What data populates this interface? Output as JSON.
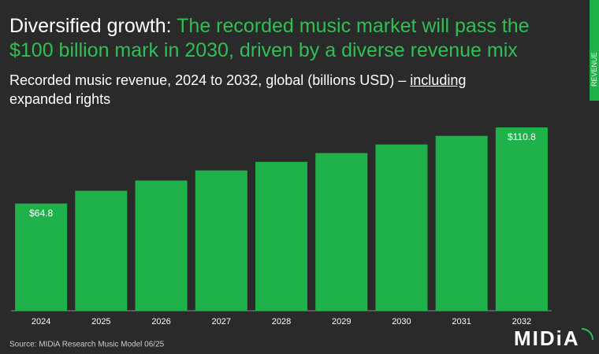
{
  "title_lead": "Diversified growth:",
  "title_highlight": "The recorded music market will pass the $100 billion mark in 2030, driven by a diverse revenue mix",
  "subtitle_before": "Recorded music revenue, 2024 to 2032, global (billions USD) –",
  "subtitle_underlined": "including",
  "subtitle_after": "expanded rights",
  "side_tab": "REVENUE",
  "source": "Source: MIDiA Research Music Model 06/25",
  "logo": "MIDiA",
  "chart_data": {
    "type": "bar",
    "categories": [
      "2024",
      "2025",
      "2026",
      "2027",
      "2028",
      "2029",
      "2030",
      "2031",
      "2032"
    ],
    "values": [
      64.8,
      72.5,
      78.7,
      84.8,
      90.0,
      95.3,
      100.5,
      105.7,
      110.8
    ],
    "value_labels": [
      "$64.8",
      null,
      null,
      null,
      null,
      null,
      null,
      null,
      "$110.8"
    ],
    "color": "#1fb24a"
  }
}
